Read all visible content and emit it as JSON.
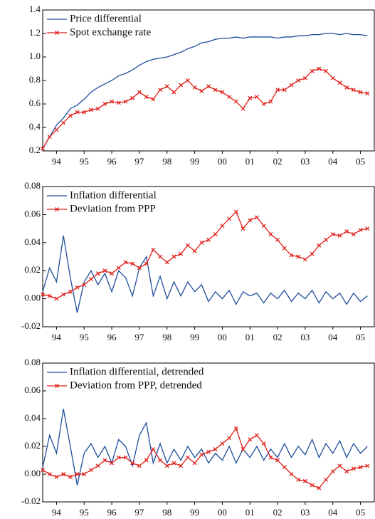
{
  "chart_data": [
    {
      "type": "line",
      "legend": "upper left",
      "x": [
        1994,
        1994.25,
        1994.5,
        1994.75,
        1995,
        1995.25,
        1995.5,
        1995.75,
        1996,
        1996.25,
        1996.5,
        1996.75,
        1997,
        1997.25,
        1997.5,
        1997.75,
        1998,
        1998.25,
        1998.5,
        1998.75,
        1999,
        1999.25,
        1999.5,
        1999.75,
        2000,
        2000.25,
        2000.5,
        2000.75,
        2001,
        2001.25,
        2001.5,
        2001.75,
        2002,
        2002.25,
        2002.5,
        2002.75,
        2003,
        2003.25,
        2003.5,
        2003.75,
        2004,
        2004.25,
        2004.5,
        2004.75,
        2005,
        2005.25,
        2005.5,
        2005.75
      ],
      "xlim": [
        1994,
        2006
      ],
      "xticks": [
        {
          "value": 1994.5,
          "label": "94"
        },
        {
          "value": 1995.5,
          "label": "95"
        },
        {
          "value": 1996.5,
          "label": "96"
        },
        {
          "value": 1997.5,
          "label": "97"
        },
        {
          "value": 1998.5,
          "label": "98"
        },
        {
          "value": 1999.5,
          "label": "99"
        },
        {
          "value": 2000.5,
          "label": "00"
        },
        {
          "value": 2001.5,
          "label": "01"
        },
        {
          "value": 2002.5,
          "label": "02"
        },
        {
          "value": 2003.5,
          "label": "03"
        },
        {
          "value": 2004.5,
          "label": "04"
        },
        {
          "value": 2005.5,
          "label": "05"
        }
      ],
      "ylim": [
        0.2,
        1.4
      ],
      "yticks": [
        0.2,
        0.4,
        0.6,
        0.8,
        {
          "value": 1,
          "label": "1.0"
        },
        1.2,
        1.4
      ],
      "series": [
        {
          "name": "Price differential",
          "color": "#1f4e9c",
          "values": [
            0.22,
            0.32,
            0.42,
            0.48,
            0.56,
            0.59,
            0.64,
            0.7,
            0.74,
            0.77,
            0.8,
            0.84,
            0.86,
            0.89,
            0.93,
            0.96,
            0.98,
            0.99,
            1.0,
            1.02,
            1.04,
            1.07,
            1.09,
            1.12,
            1.13,
            1.15,
            1.16,
            1.16,
            1.17,
            1.16,
            1.17,
            1.17,
            1.17,
            1.17,
            1.16,
            1.17,
            1.17,
            1.18,
            1.18,
            1.19,
            1.19,
            1.2,
            1.2,
            1.19,
            1.2,
            1.19,
            1.19,
            1.18
          ]
        },
        {
          "name": "Spot exchange rate",
          "color": "#e0201b",
          "marker": "x",
          "values": [
            0.22,
            0.32,
            0.38,
            0.44,
            0.5,
            0.53,
            0.53,
            0.55,
            0.56,
            0.6,
            0.62,
            0.61,
            0.62,
            0.65,
            0.7,
            0.66,
            0.64,
            0.72,
            0.75,
            0.7,
            0.76,
            0.8,
            0.74,
            0.71,
            0.75,
            0.72,
            0.7,
            0.66,
            0.62,
            0.56,
            0.65,
            0.66,
            0.6,
            0.62,
            0.72,
            0.72,
            0.76,
            0.8,
            0.82,
            0.88,
            0.9,
            0.88,
            0.82,
            0.78,
            0.74,
            0.72,
            0.7,
            0.69
          ]
        }
      ]
    },
    {
      "type": "line",
      "legend": "upper left",
      "x": [
        1994,
        1994.25,
        1994.5,
        1994.75,
        1995,
        1995.25,
        1995.5,
        1995.75,
        1996,
        1996.25,
        1996.5,
        1996.75,
        1997,
        1997.25,
        1997.5,
        1997.75,
        1998,
        1998.25,
        1998.5,
        1998.75,
        1999,
        1999.25,
        1999.5,
        1999.75,
        2000,
        2000.25,
        2000.5,
        2000.75,
        2001,
        2001.25,
        2001.5,
        2001.75,
        2002,
        2002.25,
        2002.5,
        2002.75,
        2003,
        2003.25,
        2003.5,
        2003.75,
        2004,
        2004.25,
        2004.5,
        2004.75,
        2005,
        2005.25,
        2005.5,
        2005.75
      ],
      "xlim": [
        1994,
        2006
      ],
      "xticks": [
        {
          "value": 1994.5,
          "label": "94"
        },
        {
          "value": 1995.5,
          "label": "95"
        },
        {
          "value": 1996.5,
          "label": "96"
        },
        {
          "value": 1997.5,
          "label": "97"
        },
        {
          "value": 1998.5,
          "label": "98"
        },
        {
          "value": 1999.5,
          "label": "99"
        },
        {
          "value": 2000.5,
          "label": "00"
        },
        {
          "value": 2001.5,
          "label": "01"
        },
        {
          "value": 2002.5,
          "label": "02"
        },
        {
          "value": 2003.5,
          "label": "03"
        },
        {
          "value": 2004.5,
          "label": "04"
        },
        {
          "value": 2005.5,
          "label": "05"
        }
      ],
      "ylim": [
        -0.02,
        0.08
      ],
      "yticks": [
        -0.02,
        {
          "value": 0,
          "label": "0.00"
        },
        0.02,
        0.04,
        0.06,
        0.08
      ],
      "series": [
        {
          "name": "Inflation differential",
          "color": "#1f4e9c",
          "values": [
            0.005,
            0.022,
            0.012,
            0.045,
            0.015,
            -0.01,
            0.012,
            0.02,
            0.01,
            0.018,
            0.005,
            0.02,
            0.015,
            0.002,
            0.022,
            0.03,
            0.002,
            0.016,
            0.0,
            0.012,
            0.002,
            0.012,
            0.005,
            0.01,
            -0.002,
            0.005,
            0.0,
            0.006,
            -0.004,
            0.005,
            0.002,
            0.004,
            -0.003,
            0.004,
            0.0,
            0.006,
            -0.002,
            0.004,
            0.0,
            0.006,
            -0.003,
            0.005,
            0.0,
            0.004,
            -0.004,
            0.004,
            -0.002,
            0.002
          ]
        },
        {
          "name": "Deviation from PPP",
          "color": "#e0201b",
          "marker": "x",
          "values": [
            0.003,
            0.002,
            0.0,
            0.003,
            0.005,
            0.008,
            0.01,
            0.014,
            0.018,
            0.02,
            0.018,
            0.022,
            0.026,
            0.025,
            0.022,
            0.025,
            0.035,
            0.03,
            0.026,
            0.03,
            0.032,
            0.038,
            0.034,
            0.04,
            0.042,
            0.046,
            0.052,
            0.057,
            0.062,
            0.05,
            0.056,
            0.058,
            0.052,
            0.046,
            0.042,
            0.036,
            0.031,
            0.03,
            0.028,
            0.032,
            0.038,
            0.042,
            0.046,
            0.045,
            0.048,
            0.046,
            0.049,
            0.05
          ]
        }
      ]
    },
    {
      "type": "line",
      "legend": "upper left",
      "x": [
        1994,
        1994.25,
        1994.5,
        1994.75,
        1995,
        1995.25,
        1995.5,
        1995.75,
        1996,
        1996.25,
        1996.5,
        1996.75,
        1997,
        1997.25,
        1997.5,
        1997.75,
        1998,
        1998.25,
        1998.5,
        1998.75,
        1999,
        1999.25,
        1999.5,
        1999.75,
        2000,
        2000.25,
        2000.5,
        2000.75,
        2001,
        2001.25,
        2001.5,
        2001.75,
        2002,
        2002.25,
        2002.5,
        2002.75,
        2003,
        2003.25,
        2003.5,
        2003.75,
        2004,
        2004.25,
        2004.5,
        2004.75,
        2005,
        2005.25,
        2005.5,
        2005.75
      ],
      "xlim": [
        1994,
        2006
      ],
      "xticks": [
        {
          "value": 1994.5,
          "label": "94"
        },
        {
          "value": 1995.5,
          "label": "95"
        },
        {
          "value": 1996.5,
          "label": "96"
        },
        {
          "value": 1997.5,
          "label": "97"
        },
        {
          "value": 1998.5,
          "label": "98"
        },
        {
          "value": 1999.5,
          "label": "99"
        },
        {
          "value": 2000.5,
          "label": "00"
        },
        {
          "value": 2001.5,
          "label": "01"
        },
        {
          "value": 2002.5,
          "label": "02"
        },
        {
          "value": 2003.5,
          "label": "03"
        },
        {
          "value": 2004.5,
          "label": "04"
        },
        {
          "value": 2005.5,
          "label": "05"
        }
      ],
      "ylim": [
        -0.02,
        0.08
      ],
      "yticks": [
        -0.02,
        {
          "value": 0,
          "label": "0.00"
        },
        0.02,
        0.04,
        0.06,
        0.08
      ],
      "series": [
        {
          "name": "Inflation differential, detrended",
          "color": "#1f4e9c",
          "values": [
            0.005,
            0.028,
            0.015,
            0.047,
            0.02,
            -0.008,
            0.015,
            0.022,
            0.012,
            0.02,
            0.008,
            0.025,
            0.02,
            0.006,
            0.028,
            0.037,
            0.008,
            0.022,
            0.008,
            0.018,
            0.01,
            0.02,
            0.012,
            0.018,
            0.008,
            0.015,
            0.01,
            0.02,
            0.008,
            0.018,
            0.012,
            0.02,
            0.01,
            0.018,
            0.012,
            0.022,
            0.012,
            0.02,
            0.014,
            0.025,
            0.012,
            0.022,
            0.015,
            0.024,
            0.012,
            0.022,
            0.015,
            0.02
          ]
        },
        {
          "name": "Deviation from PPP, detrended",
          "color": "#e0201b",
          "marker": "x",
          "values": [
            0.003,
            0.0,
            -0.002,
            0.0,
            -0.002,
            0.0,
            0.0,
            0.003,
            0.006,
            0.01,
            0.008,
            0.012,
            0.012,
            0.008,
            0.006,
            0.01,
            0.018,
            0.01,
            0.006,
            0.008,
            0.006,
            0.012,
            0.008,
            0.014,
            0.016,
            0.018,
            0.022,
            0.026,
            0.033,
            0.018,
            0.025,
            0.028,
            0.022,
            0.012,
            0.01,
            0.005,
            0.0,
            -0.004,
            -0.005,
            -0.008,
            -0.01,
            -0.004,
            0.002,
            0.006,
            0.002,
            0.004,
            0.005,
            0.006
          ]
        }
      ]
    }
  ]
}
